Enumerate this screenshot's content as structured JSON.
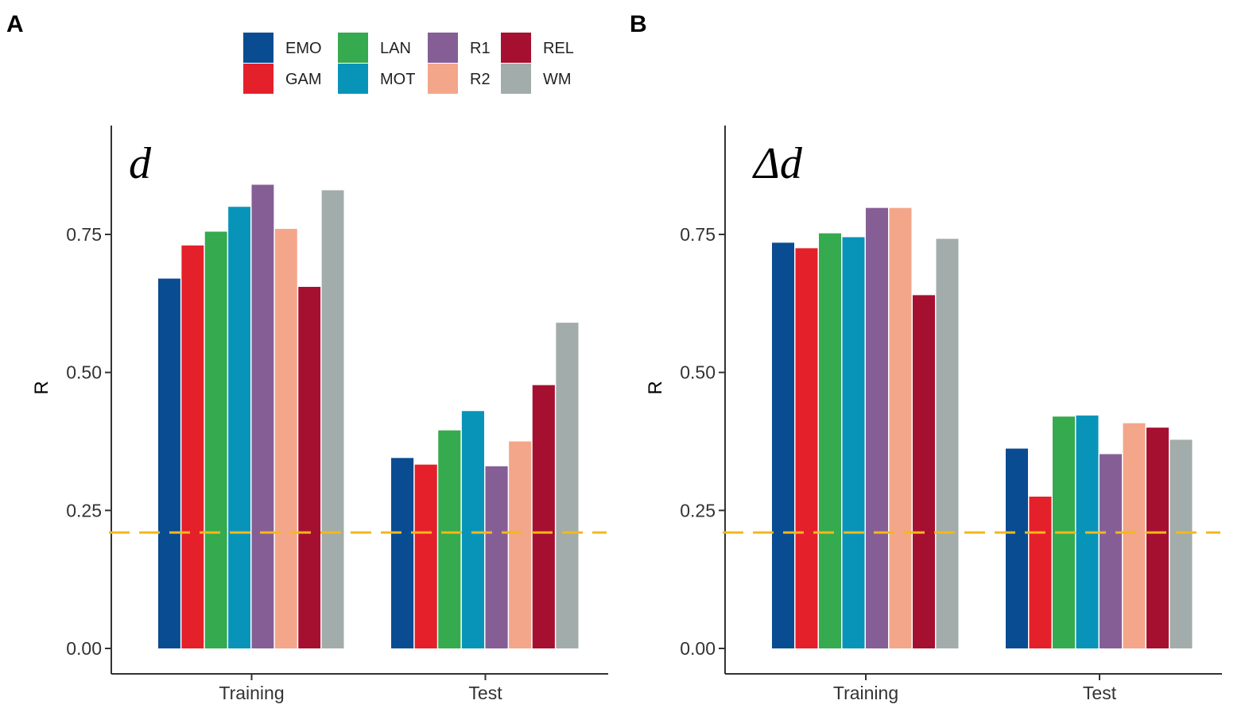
{
  "chart_data": [
    {
      "panel": "A",
      "stat_label": "d",
      "type": "bar",
      "ylabel": "R",
      "xlabel": "",
      "ylim": [
        0,
        0.92
      ],
      "yticks": [
        "0.00",
        "0.25",
        "0.50",
        "0.75"
      ],
      "categories": [
        "Training",
        "Test"
      ],
      "reference_line": 0.21,
      "series": [
        {
          "name": "EMO",
          "values": [
            0.67,
            0.345
          ]
        },
        {
          "name": "GAM",
          "values": [
            0.73,
            0.333
          ]
        },
        {
          "name": "LAN",
          "values": [
            0.755,
            0.395
          ]
        },
        {
          "name": "MOT",
          "values": [
            0.8,
            0.43
          ]
        },
        {
          "name": "R1",
          "values": [
            0.84,
            0.33
          ]
        },
        {
          "name": "R2",
          "values": [
            0.76,
            0.375
          ]
        },
        {
          "name": "REL",
          "values": [
            0.655,
            0.477
          ]
        },
        {
          "name": "WM",
          "values": [
            0.83,
            0.59
          ]
        }
      ]
    },
    {
      "panel": "B",
      "stat_label": "Δd",
      "type": "bar",
      "ylabel": "R",
      "xlabel": "",
      "ylim": [
        0,
        0.92
      ],
      "yticks": [
        "0.00",
        "0.25",
        "0.50",
        "0.75"
      ],
      "categories": [
        "Training",
        "Test"
      ],
      "reference_line": 0.21,
      "series": [
        {
          "name": "EMO",
          "values": [
            0.735,
            0.362
          ]
        },
        {
          "name": "GAM",
          "values": [
            0.725,
            0.275
          ]
        },
        {
          "name": "LAN",
          "values": [
            0.752,
            0.42
          ]
        },
        {
          "name": "MOT",
          "values": [
            0.745,
            0.422
          ]
        },
        {
          "name": "R1",
          "values": [
            0.798,
            0.352
          ]
        },
        {
          "name": "R2",
          "values": [
            0.798,
            0.408
          ]
        },
        {
          "name": "REL",
          "values": [
            0.64,
            0.4
          ]
        },
        {
          "name": "WM",
          "values": [
            0.742,
            0.378
          ]
        }
      ]
    }
  ],
  "legend": {
    "position": "top",
    "items": [
      {
        "name": "EMO",
        "color": "#094C91"
      },
      {
        "name": "GAM",
        "color": "#E4202A"
      },
      {
        "name": "LAN",
        "color": "#36AA4E"
      },
      {
        "name": "MOT",
        "color": "#0894B8"
      },
      {
        "name": "R1",
        "color": "#865E96"
      },
      {
        "name": "R2",
        "color": "#F3A68A"
      },
      {
        "name": "REL",
        "color": "#A61030"
      },
      {
        "name": "WM",
        "color": "#A2ACAB"
      }
    ]
  },
  "reference_line_color": "#F4B81B"
}
